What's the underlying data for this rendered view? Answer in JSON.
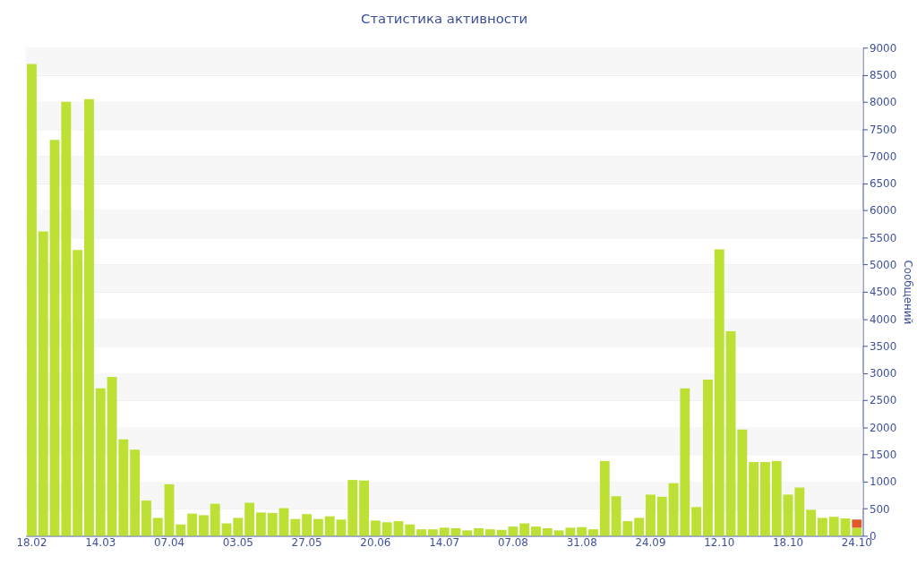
{
  "chart_data": {
    "type": "bar",
    "title": "Статистика активности",
    "ylabel": "Сообщений",
    "categories": [
      "18.02",
      null,
      null,
      null,
      null,
      null,
      "14.03",
      null,
      null,
      null,
      null,
      null,
      "07.04",
      null,
      null,
      null,
      null,
      null,
      "03.05",
      null,
      null,
      null,
      null,
      null,
      "27.05",
      null,
      null,
      null,
      null,
      null,
      "20.06",
      null,
      null,
      null,
      null,
      null,
      "14.07",
      null,
      null,
      null,
      null,
      null,
      "07.08",
      null,
      null,
      null,
      null,
      null,
      "31.08",
      null,
      null,
      null,
      null,
      null,
      "24.09",
      null,
      null,
      null,
      null,
      null,
      "12.10",
      null,
      null,
      null,
      null,
      null,
      "18.10",
      null,
      null,
      null,
      null,
      null,
      "24.10"
    ],
    "series": [
      {
        "color": "#bde034",
        "values": [
          8700,
          5610,
          7300,
          8000,
          5270,
          8050,
          2720,
          2930,
          1780,
          1590,
          650,
          330,
          950,
          210,
          410,
          380,
          590,
          230,
          330,
          610,
          430,
          420,
          510,
          310,
          400,
          310,
          360,
          300,
          1030,
          1020,
          280,
          250,
          270,
          210,
          120,
          120,
          150,
          140,
          100,
          140,
          120,
          110,
          170,
          230,
          170,
          140,
          100,
          150,
          160,
          120,
          1380,
          730,
          270,
          330,
          760,
          720,
          970,
          2720,
          530,
          2880,
          5280,
          3770,
          1960,
          1360,
          1360,
          1380,
          760,
          890,
          480,
          330,
          350,
          320,
          150
        ]
      },
      {
        "color": "#e05a2b",
        "values": [
          null,
          null,
          null,
          null,
          null,
          null,
          null,
          null,
          null,
          null,
          null,
          null,
          null,
          null,
          null,
          null,
          null,
          null,
          null,
          null,
          null,
          null,
          null,
          null,
          null,
          null,
          null,
          null,
          null,
          null,
          null,
          null,
          null,
          null,
          null,
          null,
          null,
          null,
          null,
          null,
          null,
          null,
          null,
          null,
          null,
          null,
          null,
          null,
          null,
          null,
          null,
          null,
          null,
          null,
          null,
          null,
          null,
          null,
          null,
          null,
          null,
          null,
          null,
          null,
          null,
          null,
          null,
          null,
          null,
          null,
          null,
          null,
          150
        ]
      }
    ],
    "stacked": true,
    "ylim": [
      0,
      9000
    ],
    "yticks": [
      0,
      500,
      1000,
      1500,
      2000,
      2500,
      3000,
      3500,
      4000,
      4500,
      5000,
      5500,
      6000,
      6500,
      7000,
      7500,
      8000,
      8500,
      9000
    ],
    "grid": "y",
    "legend": false
  }
}
